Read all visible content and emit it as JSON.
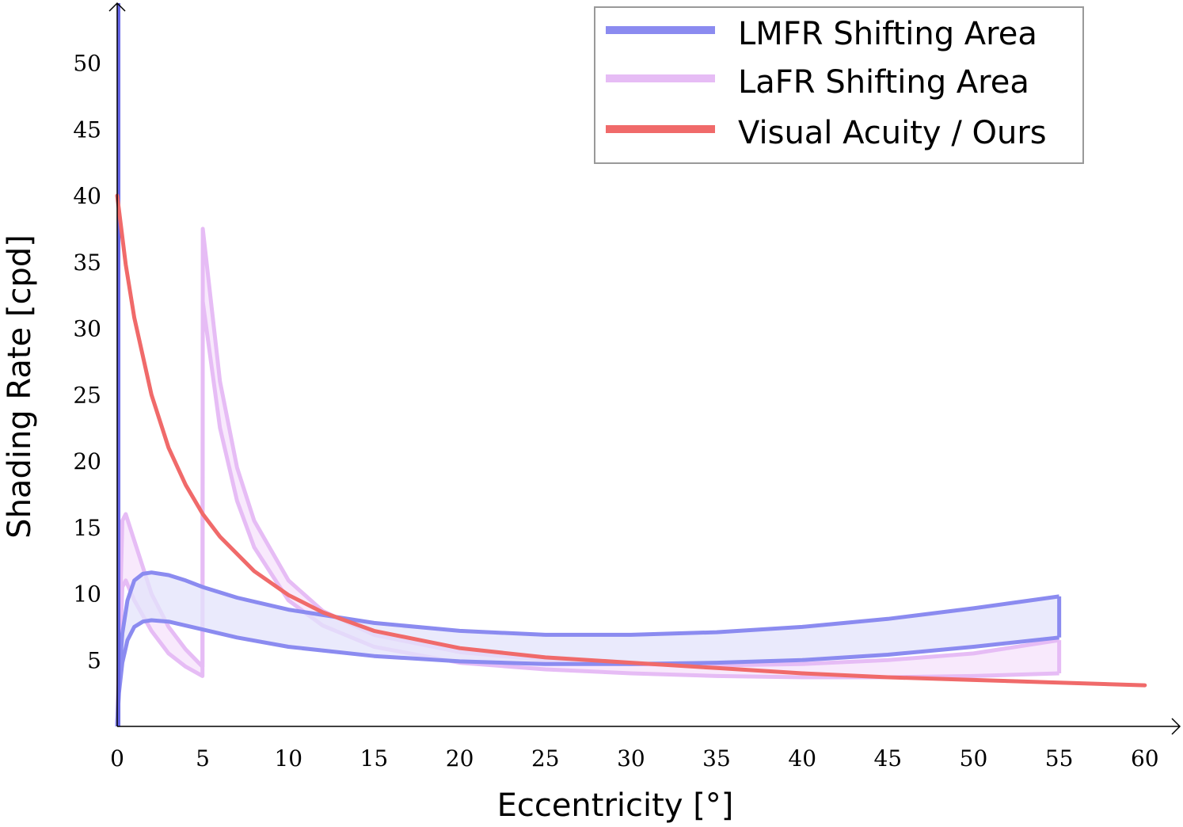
{
  "chart_data": {
    "type": "line",
    "title": "",
    "xlabel": "Eccentricity [°]",
    "ylabel": "Shading Rate [cpd]",
    "xlim": [
      0,
      62
    ],
    "ylim": [
      0,
      55
    ],
    "xticks": [
      0,
      5,
      10,
      15,
      20,
      25,
      30,
      35,
      40,
      45,
      50,
      55,
      60
    ],
    "yticks": [
      5,
      10,
      15,
      20,
      25,
      30,
      35,
      40,
      45,
      50
    ],
    "grid": false,
    "legend_position": "top-right",
    "colors": {
      "lmfr": "#8b8bf0",
      "lmfr_fill": "#e3e3fb",
      "lafr": "#e6bcf5",
      "lafr_fill": "#f5e1fb",
      "acuity": "#f06a6a",
      "axis": "#000000"
    },
    "series": [
      {
        "name": "LMFR Shifting Area",
        "kind": "band",
        "upper": {
          "x": [
            0,
            0.1,
            0.3,
            0.6,
            1,
            1.5,
            2,
            3,
            4,
            5,
            7,
            10,
            15,
            20,
            25,
            30,
            35,
            40,
            45,
            50,
            55
          ],
          "y": [
            0,
            3.5,
            7.0,
            9.5,
            11.0,
            11.5,
            11.6,
            11.4,
            11.0,
            10.5,
            9.7,
            8.8,
            7.8,
            7.2,
            6.9,
            6.9,
            7.1,
            7.5,
            8.1,
            8.9,
            9.8
          ]
        },
        "lower": {
          "x": [
            0,
            0.1,
            0.3,
            0.6,
            1,
            1.5,
            2,
            3,
            4,
            5,
            7,
            10,
            15,
            20,
            25,
            30,
            35,
            40,
            45,
            50,
            55
          ],
          "y": [
            0,
            2.5,
            4.8,
            6.5,
            7.5,
            7.9,
            8.0,
            7.9,
            7.6,
            7.3,
            6.7,
            6.0,
            5.3,
            4.9,
            4.7,
            4.7,
            4.8,
            5.0,
            5.4,
            6.0,
            6.7
          ]
        }
      },
      {
        "name": "LaFR Shifting Area",
        "kind": "band",
        "upper": {
          "x": [
            0,
            0.3,
            0.5,
            1,
            2,
            3,
            4,
            4.98,
            5,
            6,
            7,
            8,
            10,
            12,
            15,
            20,
            25,
            30,
            35,
            40,
            45,
            50,
            55
          ],
          "y": [
            0,
            15.5,
            16.0,
            14.0,
            10.0,
            7.5,
            5.8,
            4.5,
            37.5,
            26.0,
            19.5,
            15.5,
            11.0,
            8.7,
            6.9,
            5.6,
            5.0,
            4.7,
            4.6,
            4.7,
            5.0,
            5.5,
            6.5
          ]
        },
        "lower": {
          "x": [
            0,
            0.3,
            0.5,
            1,
            2,
            3,
            4,
            4.98,
            5,
            6,
            7,
            8,
            10,
            12,
            15,
            20,
            25,
            30,
            35,
            40,
            45,
            50,
            55
          ],
          "y": [
            0,
            10.5,
            11.0,
            9.5,
            7.2,
            5.5,
            4.5,
            3.8,
            32.0,
            22.5,
            17.0,
            13.5,
            9.5,
            7.6,
            6.0,
            4.8,
            4.3,
            4.0,
            3.8,
            3.7,
            3.7,
            3.8,
            4.0
          ]
        }
      },
      {
        "name": "Visual Acuity / Ours",
        "kind": "line",
        "x": [
          0,
          0.5,
          1,
          2,
          3,
          4,
          5,
          6,
          8,
          10,
          12,
          15,
          20,
          25,
          30,
          35,
          40,
          45,
          50,
          55,
          60
        ],
        "y": [
          40,
          34.8,
          30.8,
          25.0,
          21.0,
          18.2,
          16.0,
          14.3,
          11.7,
          9.9,
          8.6,
          7.2,
          5.9,
          5.2,
          4.8,
          4.4,
          4.0,
          3.7,
          3.5,
          3.3,
          3.1
        ]
      }
    ]
  }
}
